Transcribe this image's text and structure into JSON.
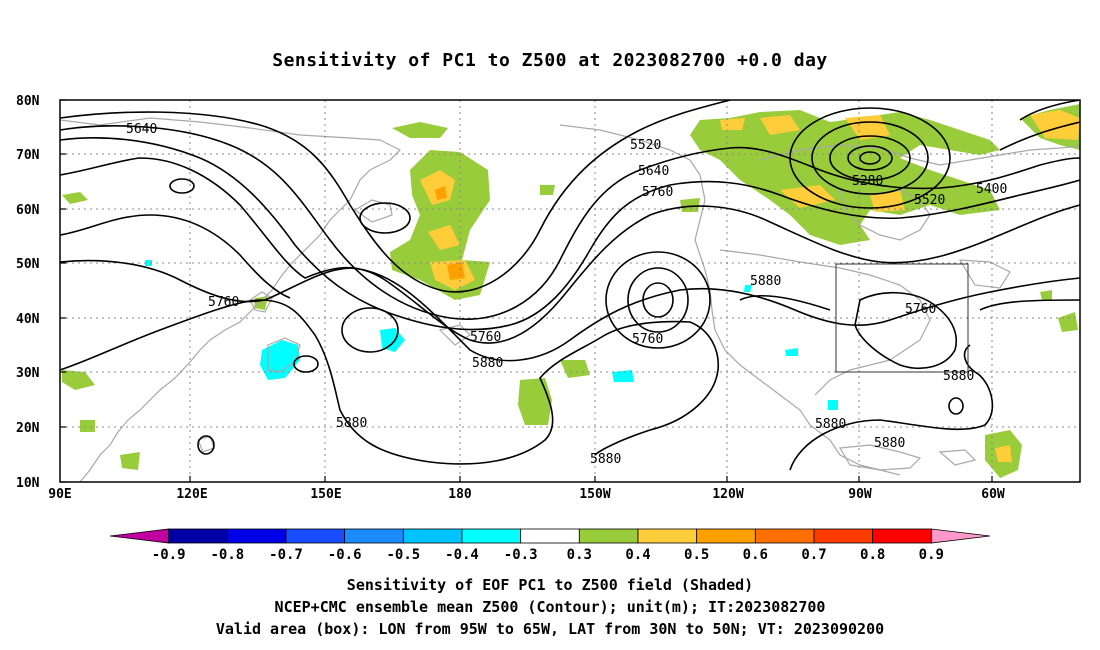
{
  "title": "Sensitivity of PC1 to Z500 at 2023082700 +0.0 day",
  "lat_labels": [
    "80N",
    "70N",
    "60N",
    "50N",
    "40N",
    "30N",
    "20N",
    "10N"
  ],
  "lon_labels": [
    "90E",
    "120E",
    "150E",
    "180",
    "150W",
    "120W",
    "90W",
    "60W"
  ],
  "contour_labels": [
    {
      "text": "5640"
    },
    {
      "text": "5520"
    },
    {
      "text": "5640"
    },
    {
      "text": "5760"
    },
    {
      "text": "5280"
    },
    {
      "text": "5400"
    },
    {
      "text": "5520"
    },
    {
      "text": "5760"
    },
    {
      "text": "5760"
    },
    {
      "text": "5760"
    },
    {
      "text": "5880"
    },
    {
      "text": "5880"
    },
    {
      "text": "5880"
    },
    {
      "text": "5880"
    },
    {
      "text": "5880"
    },
    {
      "text": "5880"
    },
    {
      "text": "5880"
    },
    {
      "text": "5760"
    }
  ],
  "colorbar": {
    "colors": [
      "#c000a0",
      "#0000a8",
      "#0000e8",
      "#1a4cff",
      "#1a8cff",
      "#00c4ff",
      "#00ffff",
      "#ffffff",
      "#98cc3a",
      "#ffcc3a",
      "#ffa000",
      "#ff7000",
      "#ff3c00",
      "#ff0000",
      "#ff99cc"
    ],
    "labels": [
      "-0.9",
      "-0.8",
      "-0.7",
      "-0.6",
      "-0.5",
      "-0.4",
      "-0.3",
      "0.3",
      "0.4",
      "0.5",
      "0.6",
      "0.7",
      "0.8",
      "0.9"
    ]
  },
  "footer": {
    "line1": "Sensitivity of EOF PC1 to Z500 field (Shaded)",
    "line2": "NCEP+CMC ensemble mean Z500 (Contour); unit(m); IT:2023082700",
    "line3": "Valid area (box): LON from 95W to 65W, LAT from 30N to 50N; VT: 2023090200"
  }
}
